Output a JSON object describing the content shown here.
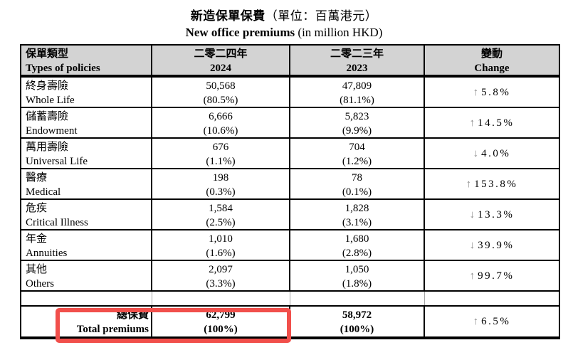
{
  "title": {
    "zh_bold": "新造保單保費",
    "zh_rest": "（單位：百萬港元）",
    "en_bold": "New office premiums",
    "en_rest": " (in million HKD)"
  },
  "header": {
    "col1_zh": "保單類型",
    "col1_en": "Types of policies",
    "col2_zh": "二零二四年",
    "col2_en": "2024",
    "col3_zh": "二零二三年",
    "col3_en": "2023",
    "col4_zh": "變動",
    "col4_en": "Change"
  },
  "rows": [
    {
      "zh": "終身壽險",
      "en": "Whole Life",
      "v2024": "50,568",
      "p2024": "(80.5%)",
      "v2023": "47,809",
      "p2023": "(81.1%)",
      "arrow": "↑",
      "direction": "up",
      "change": "5.8%"
    },
    {
      "zh": "儲蓄壽險",
      "en": "Endowment",
      "v2024": "6,666",
      "p2024": "(10.6%)",
      "v2023": "5,823",
      "p2023": "(9.9%)",
      "arrow": "↑",
      "direction": "up",
      "change": "14.5%"
    },
    {
      "zh": "萬用壽險",
      "en": "Universal Life",
      "v2024": "676",
      "p2024": "(1.1%)",
      "v2023": "704",
      "p2023": "(1.2%)",
      "arrow": "↓",
      "direction": "down",
      "change": "4.0%"
    },
    {
      "zh": "醫療",
      "en": "Medical",
      "v2024": "198",
      "p2024": "(0.3%)",
      "v2023": "78",
      "p2023": "(0.1%)",
      "arrow": "↑",
      "direction": "up",
      "change": "153.8%"
    },
    {
      "zh": "危疾",
      "en": "Critical Illness",
      "v2024": "1,584",
      "p2024": "(2.5%)",
      "v2023": "1,828",
      "p2023": "(3.1%)",
      "arrow": "↓",
      "direction": "down",
      "change": "13.3%"
    },
    {
      "zh": "年金",
      "en": "Annuities",
      "v2024": "1,010",
      "p2024": "(1.6%)",
      "v2023": "1,680",
      "p2023": "(2.8%)",
      "arrow": "↓",
      "direction": "down",
      "change": "39.9%"
    },
    {
      "zh": "其他",
      "en": "Others",
      "v2024": "2,097",
      "p2024": "(3.3%)",
      "v2023": "1,050",
      "p2023": "(1.8%)",
      "arrow": "↑",
      "direction": "up",
      "change": "99.7%"
    }
  ],
  "total": {
    "zh": "總保費",
    "en": "Total premiums",
    "v2024": "62,799",
    "p2024": "(100%)",
    "v2023": "58,972",
    "p2023": "(100%)",
    "arrow": "↑",
    "direction": "up",
    "change": "6.5%"
  },
  "colors": {
    "header_bg": "#d3d3d3",
    "highlight_box": "#f14f4b",
    "arrow_gray": "#8a8a8a",
    "border": "#000000"
  }
}
